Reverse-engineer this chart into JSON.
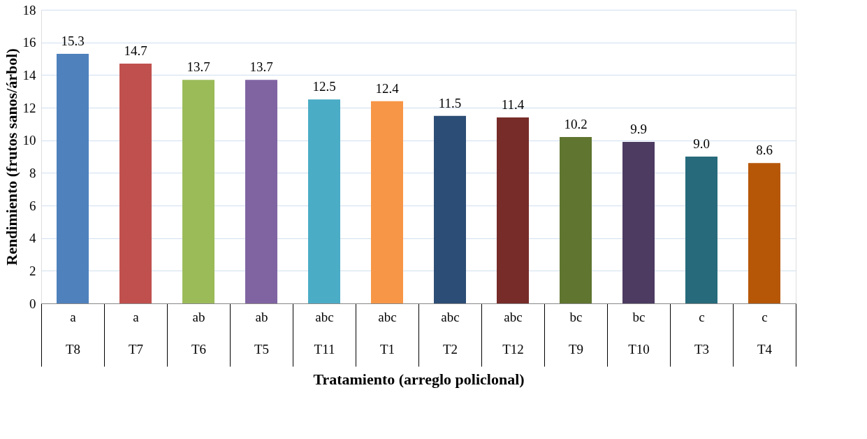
{
  "chart_data": {
    "type": "bar",
    "xlabel": "Tratamiento (arreglo policlonal)",
    "ylabel": "Rendimiento (frutos sanos/árbol)",
    "categories": [
      "T8",
      "T7",
      "T6",
      "T5",
      "T11",
      "T1",
      "T2",
      "T12",
      "T9",
      "T10",
      "T3",
      "T4"
    ],
    "values": [
      15.3,
      14.7,
      13.7,
      13.7,
      12.5,
      12.4,
      11.5,
      11.4,
      10.2,
      9.9,
      9.0,
      8.6
    ],
    "colors": [
      "#4f81bd",
      "#c0504d",
      "#9bbb59",
      "#8064a2",
      "#4bacc6",
      "#f79646",
      "#2c4d75",
      "#772c2a",
      "#5f7530",
      "#4d3b62",
      "#276a7c",
      "#b65708"
    ],
    "annotations": [
      "a",
      "a",
      "ab",
      "ab",
      "abc",
      "abc",
      "abc",
      "abc",
      "bc",
      "bc",
      "c",
      "c"
    ],
    "ylim": [
      0,
      18
    ],
    "yticks": [
      0,
      2,
      4,
      6,
      8,
      10,
      12,
      14,
      16,
      18
    ],
    "value_labels": [
      "15.3",
      "14.7",
      "13.7",
      "13.7",
      "12.5",
      "12.4",
      "11.5",
      "11.4",
      "10.2",
      "9.9",
      "9.0",
      "8.6"
    ],
    "grid": "y"
  }
}
